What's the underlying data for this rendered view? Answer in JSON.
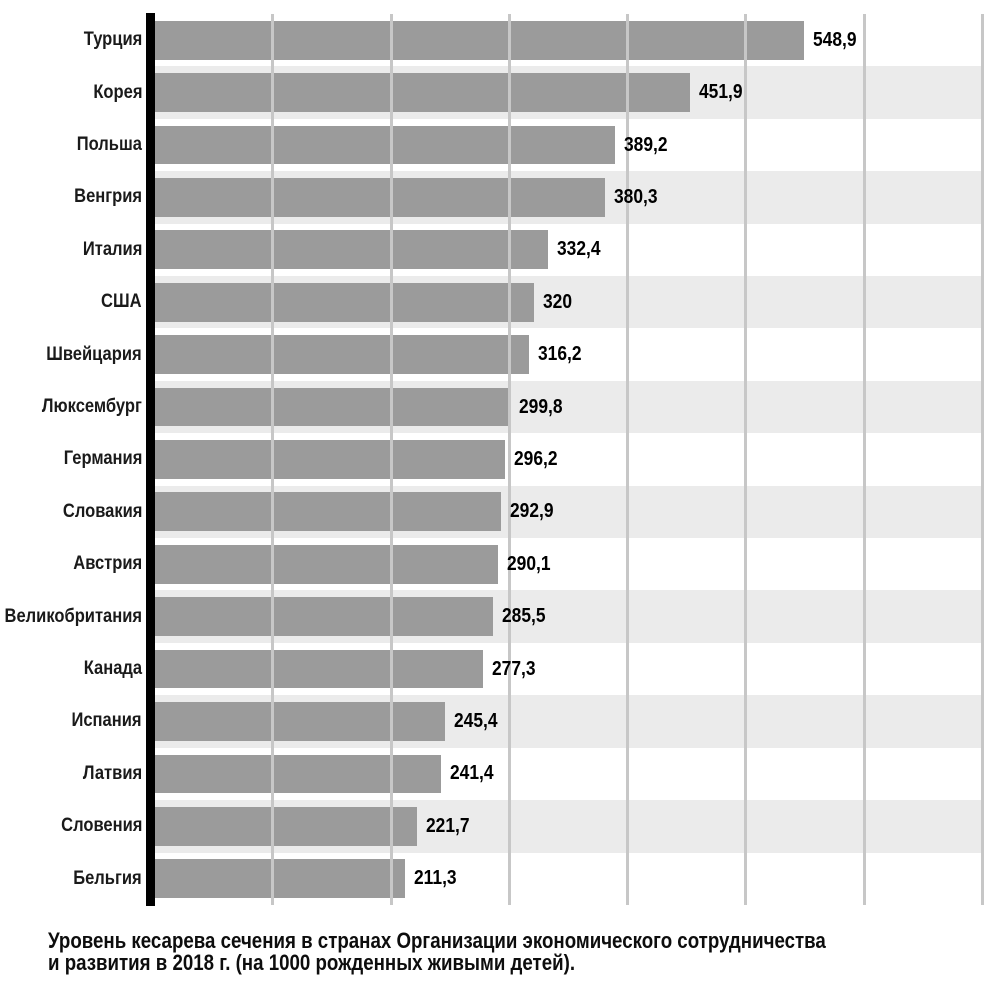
{
  "chart_data": {
    "type": "bar",
    "orientation": "horizontal",
    "categories": [
      "Турция",
      "Корея",
      "Польша",
      "Венгрия",
      "Италия",
      "США",
      "Швейцария",
      "Люксембург",
      "Германия",
      "Словакия",
      "Австрия",
      "Великобритания",
      "Канада",
      "Испания",
      "Латвия",
      "Словения",
      "Бельгия"
    ],
    "values": [
      548.9,
      451.9,
      389.2,
      380.3,
      332.4,
      320,
      316.2,
      299.8,
      296.2,
      292.9,
      290.1,
      285.5,
      277.3,
      245.4,
      241.4,
      221.7,
      211.3
    ],
    "value_labels": [
      "548,9",
      "451,9",
      "389,2",
      "380,3",
      "332,4",
      "320",
      "316,2",
      "299,8",
      "296,2",
      "292,9",
      "290,1",
      "285,5",
      "277,3",
      "245,4",
      "241,4",
      "221,7",
      "211,3"
    ],
    "title": "",
    "xlabel": "",
    "ylabel": "",
    "xlim": [
      0,
      700
    ],
    "gridline_interval": 100,
    "grid": true,
    "legend": false,
    "colors": {
      "bar": "#9b9b9b",
      "row_stripe": "#ebebeb",
      "gridline": "#c7c7c7",
      "axis": "#000000",
      "text": "#0d0d0d"
    }
  },
  "caption": {
    "line1": "Уровень кесарева сечения в странах Организации экономического сотрудничества",
    "line2": "и развития в 2018 г. (на 1000 рожденных живыми детей)."
  }
}
